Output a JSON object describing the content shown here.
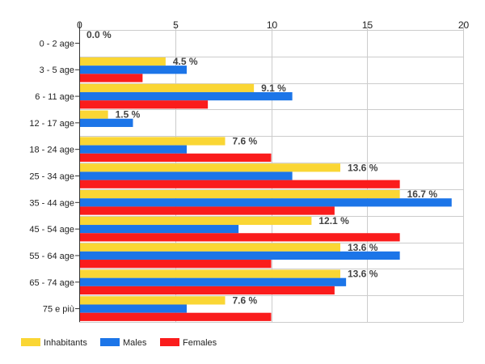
{
  "chart_data": {
    "type": "bar",
    "orientation": "horizontal",
    "title": "",
    "xlabel": "",
    "ylabel": "",
    "xlim": [
      0,
      20
    ],
    "x_ticks": [
      0,
      5,
      10,
      15,
      20
    ],
    "grid": true,
    "legend_position": "bottom-left",
    "categories": [
      "0 - 2 age",
      "3 - 5 age",
      "6 - 11 age",
      "12 - 17 age",
      "18 - 24 age",
      "25 - 34 age",
      "35 - 44 age",
      "45 - 54 age",
      "55 - 64 age",
      "65 - 74 age",
      "75 e più"
    ],
    "series": [
      {
        "name": "Inhabitants",
        "color": "#fad634",
        "values": [
          0.0,
          4.5,
          9.1,
          1.5,
          7.6,
          13.6,
          16.7,
          12.1,
          13.6,
          13.6,
          7.6
        ],
        "data_labels": [
          "0.0 %",
          "4.5 %",
          "9.1 %",
          "1.5 %",
          "7.6 %",
          "13.6 %",
          "16.7 %",
          "12.1 %",
          "13.6 %",
          "13.6 %",
          "7.6 %"
        ]
      },
      {
        "name": "Males",
        "color": "#1c75e8",
        "values": [
          0.0,
          5.6,
          11.1,
          2.8,
          5.6,
          11.1,
          19.4,
          8.3,
          16.7,
          13.9,
          5.6
        ]
      },
      {
        "name": "Females",
        "color": "#fa1c1c",
        "values": [
          0.0,
          3.3,
          6.7,
          0.0,
          10.0,
          16.7,
          13.3,
          16.7,
          10.0,
          13.3,
          10.0
        ]
      }
    ]
  }
}
